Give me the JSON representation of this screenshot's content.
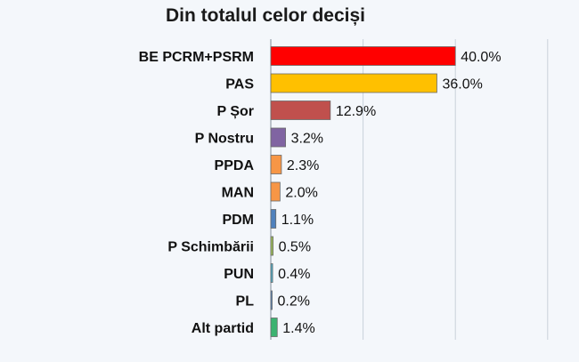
{
  "chart_data": {
    "type": "bar",
    "orientation": "horizontal",
    "title": "Din totalul celor deciși",
    "categories": [
      "BE PCRM+PSRM",
      "PAS",
      "P Șor",
      "P Nostru",
      "PPDA",
      "MAN",
      "PDM",
      "P Schimbării",
      "PUN",
      "PL",
      "Alt partid"
    ],
    "values": [
      40.0,
      36.0,
      12.9,
      3.2,
      2.3,
      2.0,
      1.1,
      0.5,
      0.4,
      0.2,
      1.4
    ],
    "value_labels": [
      "40.0%",
      "36.0%",
      "12.9%",
      "3.2%",
      "2.3%",
      "2.0%",
      "1.1%",
      "0.5%",
      "0.4%",
      "0.2%",
      "1.4%"
    ],
    "colors": [
      "#ff0000",
      "#ffc000",
      "#c0504d",
      "#8064a2",
      "#f79646",
      "#f79646",
      "#4f81bd",
      "#9bbb59",
      "#4bacc6",
      "#4f81bd",
      "#3cb371"
    ],
    "xlim": [
      0,
      60
    ],
    "grid": true,
    "unit": "%"
  }
}
